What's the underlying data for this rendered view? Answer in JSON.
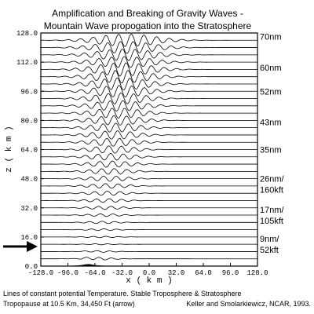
{
  "chart_data": {
    "type": "line",
    "title": [
      "Amplification and Breaking of Gravity Waves -",
      "Mountain Wave propogation into the Stratosphere"
    ],
    "xlabel": "x ( k m )",
    "ylabel": "z ( k m )",
    "xlim": [
      -128,
      128
    ],
    "ylim": [
      0,
      128
    ],
    "xticks": [
      "-128.0",
      "-96.0",
      "-64.0",
      "-32.0",
      "0.0",
      "32.0",
      "64.0",
      "96.0",
      "128.0"
    ],
    "yticks": [
      "0.0",
      "16.0",
      "32.0",
      "48.0",
      "64.0",
      "80.0",
      "96.0",
      "112.0",
      "128.0"
    ],
    "series_description": "Lines of constant potential temperature (isentropes)",
    "mountain": {
      "center_x": -72,
      "half_width_km": 8,
      "height_km": 1
    },
    "tropopause_km": 10.5,
    "isentrope_levels_km": [
      4,
      8,
      12,
      16,
      20,
      24,
      28,
      32,
      36,
      40,
      44,
      48,
      52,
      56,
      60,
      64,
      68,
      72,
      76,
      80,
      84,
      88,
      92,
      96,
      100,
      104,
      108,
      112,
      116,
      120,
      124
    ],
    "right_labels": [
      {
        "y": 126,
        "text": "70nm"
      },
      {
        "y": 109,
        "text": "60nm"
      },
      {
        "y": 96,
        "text": "52nm"
      },
      {
        "y": 79,
        "text": "43nm"
      },
      {
        "y": 64,
        "text": "35nm"
      },
      {
        "y": 48,
        "text": "26nm/"
      },
      {
        "y": 42,
        "text": "160kft"
      },
      {
        "y": 31,
        "text": "17nm/"
      },
      {
        "y": 25,
        "text": "105kft"
      },
      {
        "y": 15,
        "text": "9nm/"
      },
      {
        "y": 9,
        "text": "52kft"
      }
    ],
    "caption": [
      "Lines of constant potential Temperature.  Stable Troposphere & Stratosphere",
      "Tropopause at 10.5 Km, 34,450 Ft (arrow)"
    ],
    "credit": "Keller and Smolarkiewicz, NCAR, 1993."
  }
}
